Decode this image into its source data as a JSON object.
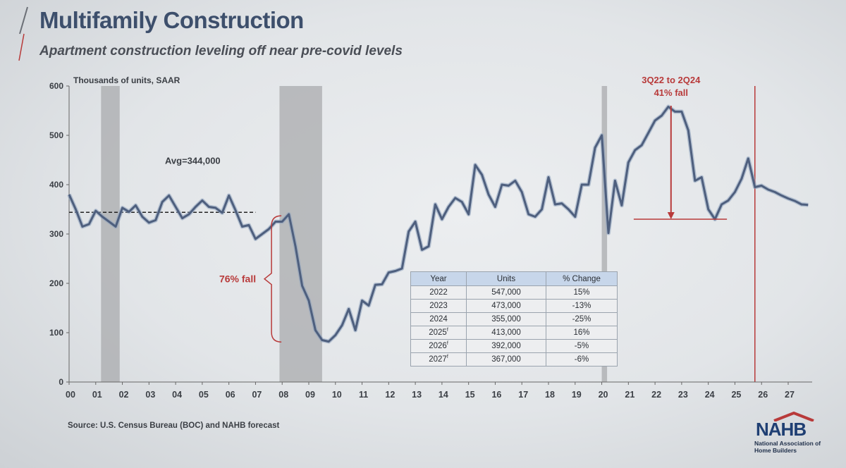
{
  "title": "Multifamily Construction",
  "subtitle": "Apartment construction leveling off near pre-covid levels",
  "source": "Source: U.S. Census Bureau (BOC) and NAHB forecast",
  "logo": {
    "word": "NAHB",
    "sub": "National Association of Home Builders"
  },
  "table": {
    "headers": [
      "Year",
      "Units",
      "% Change"
    ],
    "rows": [
      {
        "year": "2022",
        "sup": "",
        "units": "547,000",
        "change": "15%"
      },
      {
        "year": "2023",
        "sup": "",
        "units": "473,000",
        "change": "-13%"
      },
      {
        "year": "2024",
        "sup": "",
        "units": "355,000",
        "change": "-25%"
      },
      {
        "year": "2025",
        "sup": "f",
        "units": "413,000",
        "change": "16%"
      },
      {
        "year": "2026",
        "sup": "f",
        "units": "392,000",
        "change": "-5%"
      },
      {
        "year": "2027",
        "sup": "f",
        "units": "367,000",
        "change": "-6%"
      }
    ]
  },
  "colors": {
    "line": "#4e5f7e",
    "accent": "#b83a3a",
    "recession": "#a9abad",
    "title": "#3d4f6c"
  },
  "chart_data": {
    "type": "line",
    "ylabel": "Thousands of units, SAAR",
    "ylim": [
      0,
      600
    ],
    "yticks": [
      0,
      100,
      200,
      300,
      400,
      500,
      600
    ],
    "xlim": [
      2000,
      2027.9
    ],
    "xtick_labels": [
      "00",
      "01",
      "02",
      "03",
      "04",
      "05",
      "06",
      "07",
      "08",
      "09",
      "10",
      "11",
      "12",
      "13",
      "14",
      "15",
      "16",
      "17",
      "18",
      "19",
      "20",
      "21",
      "22",
      "23",
      "24",
      "25",
      "26",
      "27"
    ],
    "recessions": [
      [
        2001.2,
        2001.9
      ],
      [
        2007.9,
        2009.5
      ],
      [
        2020.0,
        2020.2
      ]
    ],
    "forecast_start": 2025.75,
    "average": {
      "label": "Avg=344,000",
      "value": 344,
      "x_range": [
        2000,
        2007
      ]
    },
    "annotations": [
      {
        "text": "76% fall",
        "x": 2007.6,
        "from": 337,
        "to": 81
      },
      {
        "text": "3Q22 to 2Q24",
        "text2": "41% fall",
        "x": 2022.6,
        "from": 560,
        "to": 330
      }
    ],
    "series": [
      {
        "x": [
          2000.0,
          2000.25,
          2000.5,
          2000.75,
          2001.0,
          2001.25,
          2001.5,
          2001.75,
          2002.0,
          2002.25,
          2002.5,
          2002.75,
          2003.0,
          2003.25,
          2003.5,
          2003.75,
          2004.0,
          2004.25,
          2004.5,
          2004.75,
          2005.0,
          2005.25,
          2005.5,
          2005.75,
          2006.0,
          2006.25,
          2006.5,
          2006.75,
          2007.0,
          2007.25,
          2007.5,
          2007.75,
          2008.0,
          2008.25,
          2008.5,
          2008.75,
          2009.0,
          2009.25,
          2009.5,
          2009.75,
          2010.0,
          2010.25,
          2010.5,
          2010.75,
          2011.0,
          2011.25,
          2011.5,
          2011.75,
          2012.0,
          2012.25,
          2012.5,
          2012.75,
          2013.0,
          2013.25,
          2013.5,
          2013.75,
          2014.0,
          2014.25,
          2014.5,
          2014.75,
          2015.0,
          2015.25,
          2015.5,
          2015.75,
          2016.0,
          2016.25,
          2016.5,
          2016.75,
          2017.0,
          2017.25,
          2017.5,
          2017.75,
          2018.0,
          2018.25,
          2018.5,
          2018.75,
          2019.0,
          2019.25,
          2019.5,
          2019.75,
          2020.0,
          2020.25,
          2020.5,
          2020.75,
          2021.0,
          2021.25,
          2021.5,
          2021.75,
          2022.0,
          2022.25,
          2022.5,
          2022.75,
          2023.0,
          2023.25,
          2023.5,
          2023.75,
          2024.0,
          2024.25,
          2024.5,
          2024.75,
          2025.0,
          2025.25,
          2025.5,
          2025.75,
          2026.0,
          2026.25,
          2026.5,
          2026.75,
          2027.0,
          2027.25,
          2027.5,
          2027.75
        ],
        "values": [
          380,
          350,
          315,
          320,
          347,
          335,
          325,
          315,
          353,
          345,
          358,
          335,
          323,
          328,
          365,
          378,
          355,
          332,
          340,
          355,
          368,
          355,
          353,
          343,
          378,
          348,
          315,
          318,
          290,
          300,
          310,
          325,
          325,
          340,
          275,
          195,
          165,
          105,
          85,
          82,
          95,
          115,
          148,
          105,
          165,
          155,
          197,
          198,
          222,
          225,
          230,
          305,
          325,
          268,
          275,
          360,
          330,
          355,
          373,
          365,
          340,
          440,
          420,
          380,
          355,
          400,
          398,
          408,
          385,
          340,
          335,
          350,
          415,
          360,
          362,
          350,
          335,
          400,
          400,
          475,
          500,
          302,
          408,
          358,
          445,
          470,
          480,
          505,
          530,
          540,
          558,
          548,
          548,
          510,
          408,
          415,
          350,
          330,
          360,
          368,
          385,
          412,
          453,
          395,
          398,
          390,
          385,
          378,
          372,
          367,
          360,
          359
        ]
      }
    ]
  }
}
